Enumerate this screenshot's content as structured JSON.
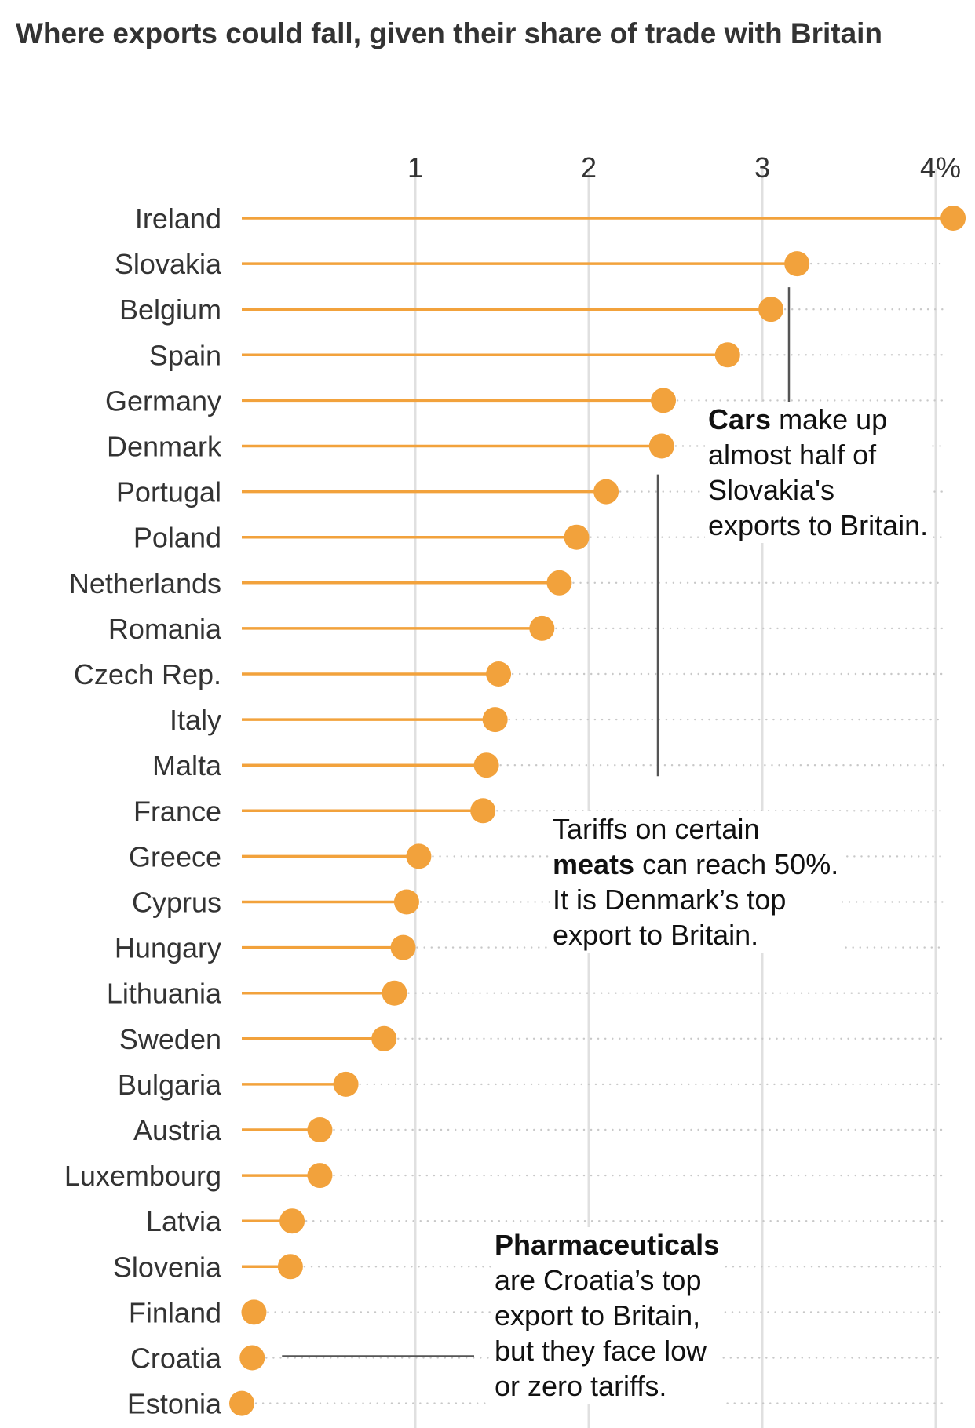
{
  "chart_data": {
    "type": "dot",
    "title": "Where exports could fall, given their share of trade with Britain",
    "x_ticks": [
      "1",
      "2",
      "3",
      "4%"
    ],
    "x_tick_values": [
      1,
      2,
      3,
      4
    ],
    "xlim": [
      0,
      4.15
    ],
    "grid": true,
    "accent_color": "#F2A23C",
    "categories": [
      "Ireland",
      "Slovakia",
      "Belgium",
      "Spain",
      "Germany",
      "Denmark",
      "Portugal",
      "Poland",
      "Netherlands",
      "Romania",
      "Czech Rep.",
      "Italy",
      "Malta",
      "France",
      "Greece",
      "Cyprus",
      "Hungary",
      "Lithuania",
      "Sweden",
      "Bulgaria",
      "Austria",
      "Luxembourg",
      "Latvia",
      "Slovenia",
      "Finland",
      "Croatia",
      "Estonia"
    ],
    "values": [
      4.1,
      3.2,
      3.05,
      2.8,
      2.43,
      2.42,
      2.1,
      1.93,
      1.83,
      1.73,
      1.48,
      1.46,
      1.41,
      1.39,
      1.02,
      0.95,
      0.93,
      0.88,
      0.82,
      0.6,
      0.45,
      0.45,
      0.29,
      0.28,
      0.07,
      0.06,
      0.0
    ]
  },
  "annotations": {
    "cars": {
      "lines": [
        [
          {
            "bold": "Cars"
          },
          {
            "text": " make up"
          }
        ],
        [
          {
            "text": "almost half of"
          }
        ],
        [
          {
            "text": "Slovakia's"
          }
        ],
        [
          {
            "text": "exports to Britain."
          }
        ]
      ]
    },
    "meats": {
      "lines": [
        [
          {
            "text": "Tariffs on certain"
          }
        ],
        [
          {
            "bold": "meats"
          },
          {
            "text": " can reach 50%."
          }
        ],
        [
          {
            "text": "It is Denmark’s top"
          }
        ],
        [
          {
            "text": "export to Britain."
          }
        ]
      ]
    },
    "pharma": {
      "lines": [
        [
          {
            "bold": "Pharmaceuticals"
          }
        ],
        [
          {
            "text": "are Croatia’s top"
          }
        ],
        [
          {
            "text": "export to Britain,"
          }
        ],
        [
          {
            "text": "but they face low"
          }
        ],
        [
          {
            "text": "or zero tariffs."
          }
        ]
      ]
    }
  }
}
